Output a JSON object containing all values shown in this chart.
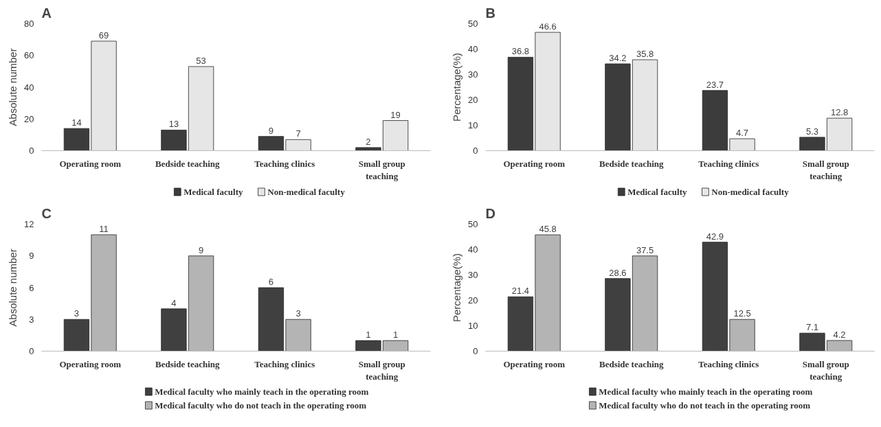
{
  "chart_data": [
    {
      "type": "bar",
      "title": "A",
      "ylabel": "Absolute number",
      "categories": [
        "Operating room",
        "Bedside teaching",
        "Teaching clinics",
        "Small group teaching"
      ],
      "series": [
        {
          "name": "Medical faculty",
          "color": "#3c3c3c",
          "values": [
            14,
            13,
            9,
            2
          ]
        },
        {
          "name": "Non-medical faculty",
          "color": "#e6e6e6",
          "values": [
            69,
            53,
            7,
            19
          ]
        }
      ],
      "ylim": [
        0,
        80
      ],
      "yticks": [
        0,
        20,
        40,
        60,
        80
      ],
      "data_labels": true,
      "legend": "bottom",
      "grid": false
    },
    {
      "type": "bar",
      "title": "B",
      "ylabel": "Percentage(%)",
      "categories": [
        "Operating room",
        "Bedside teaching",
        "Teaching clinics",
        "Small group teaching"
      ],
      "series": [
        {
          "name": "Medical faculty",
          "color": "#3c3c3c",
          "values": [
            36.8,
            34.2,
            23.7,
            5.3
          ]
        },
        {
          "name": "Non-medical faculty",
          "color": "#e6e6e6",
          "values": [
            46.6,
            35.8,
            4.7,
            12.8
          ]
        }
      ],
      "ylim": [
        0,
        50
      ],
      "yticks": [
        0,
        10,
        20,
        30,
        40,
        50
      ],
      "data_labels": true,
      "legend": "bottom",
      "grid": false
    },
    {
      "type": "bar",
      "title": "C",
      "ylabel": "Absolute number",
      "categories": [
        "Operating room",
        "Bedside teaching",
        "Teaching clinics",
        "Small group teaching"
      ],
      "series": [
        {
          "name": "Medical faculty who mainly teach in the operating room",
          "color": "#404040",
          "values": [
            3,
            4,
            6,
            1
          ]
        },
        {
          "name": "Medical faculty who do not teach in the operating room",
          "color": "#b4b4b4",
          "values": [
            11,
            9,
            3,
            1
          ]
        }
      ],
      "ylim": [
        0,
        12
      ],
      "yticks": [
        0,
        3,
        6,
        9,
        12
      ],
      "data_labels": true,
      "legend": "bottom",
      "grid": false
    },
    {
      "type": "bar",
      "title": "D",
      "ylabel": "Percentage(%)",
      "categories": [
        "Operating room",
        "Bedside teaching",
        "Teaching clinics",
        "Small group teaching"
      ],
      "series": [
        {
          "name": "Medical faculty who mainly teach in the operating room",
          "color": "#404040",
          "values": [
            21.4,
            28.6,
            42.9,
            7.1
          ]
        },
        {
          "name": "Medical faculty who do not teach in the operating room",
          "color": "#b4b4b4",
          "values": [
            45.8,
            37.5,
            12.5,
            4.2
          ]
        }
      ],
      "ylim": [
        0,
        50
      ],
      "yticks": [
        0,
        10,
        20,
        30,
        40,
        50
      ],
      "data_labels": true,
      "legend": "bottom",
      "grid": false
    }
  ]
}
